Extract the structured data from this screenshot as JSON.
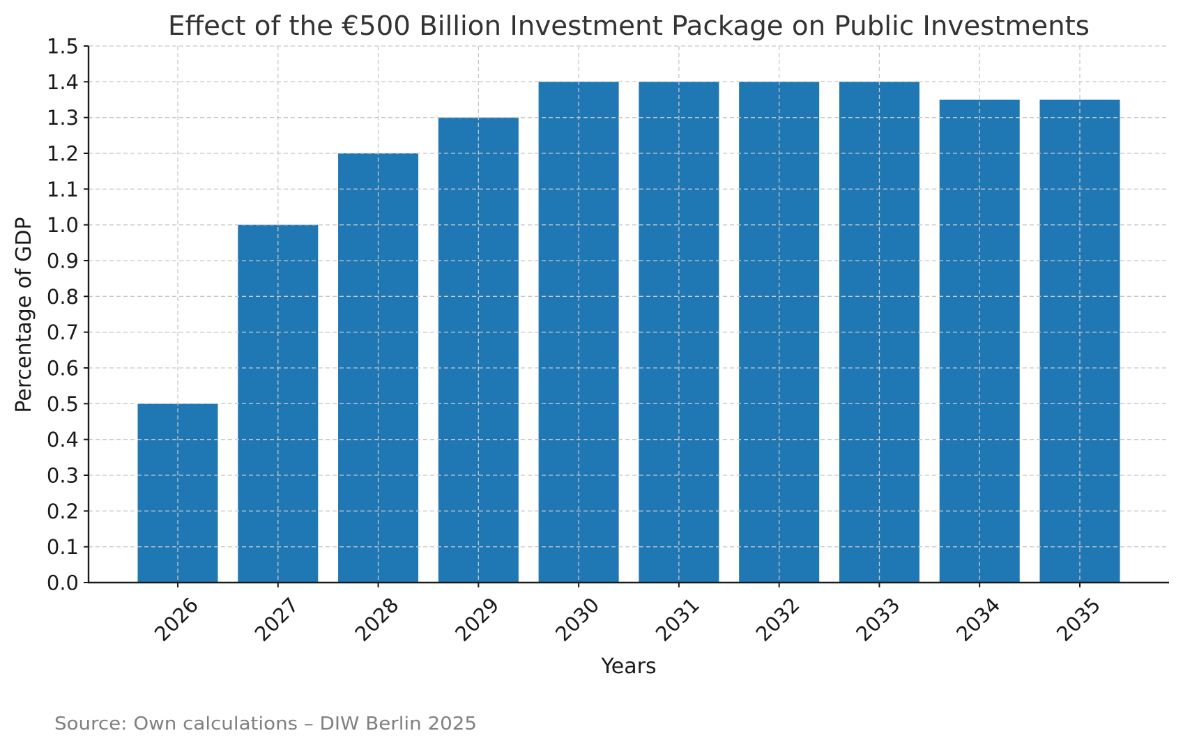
{
  "chart_data": {
    "type": "bar",
    "title": "Effect of the €500 Billion Investment Package on Public Investments",
    "xlabel": "Years",
    "ylabel": "Percentage of GDP",
    "categories": [
      "2026",
      "2027",
      "2028",
      "2029",
      "2030",
      "2031",
      "2032",
      "2033",
      "2034",
      "2035"
    ],
    "values": [
      0.5,
      1.0,
      1.2,
      1.3,
      1.4,
      1.4,
      1.4,
      1.4,
      1.35,
      1.35
    ],
    "ylim": [
      0.0,
      1.5
    ],
    "yticks": [
      "0.0",
      "0.1",
      "0.2",
      "0.3",
      "0.4",
      "0.5",
      "0.6",
      "0.7",
      "0.8",
      "0.9",
      "1.0",
      "1.1",
      "1.2",
      "1.3",
      "1.4",
      "1.5"
    ],
    "xtick_rotation_deg": 45,
    "grid": true,
    "legend": null,
    "bar_color": "#1f77b4",
    "source_note": "Source: Own calculations – DIW Berlin 2025"
  }
}
